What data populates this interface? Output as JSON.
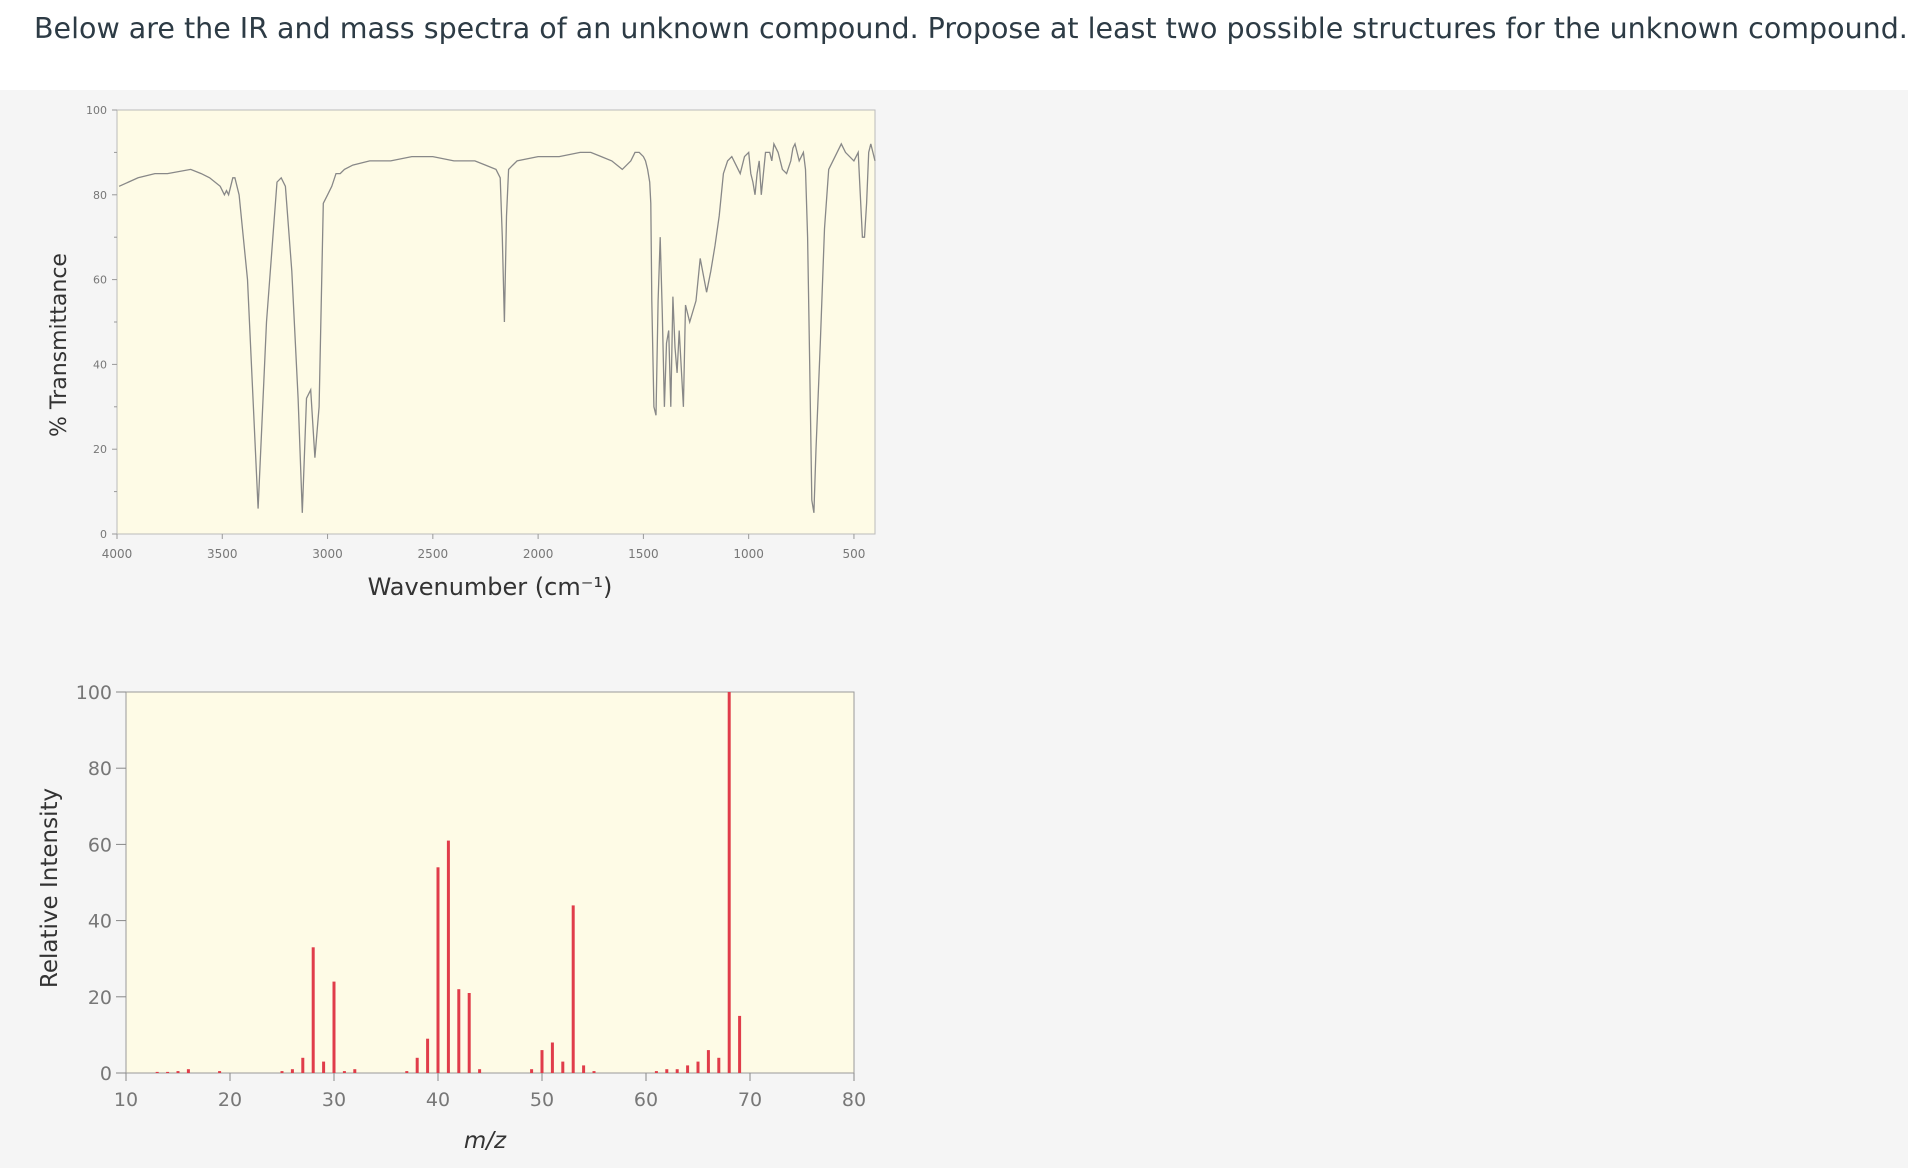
{
  "question": {
    "text": "Below are the IR and mass spectra of an unknown compound. Propose at least two possible structures for the unknown compound."
  },
  "colors": {
    "plot_background": "#fefbe6",
    "ir_line": "#888888",
    "ms_bar": "#e03c4a",
    "panel_background": "#f5f5f5"
  },
  "chart_data": [
    {
      "type": "line",
      "xlabel": "Wavenumber (cm⁻¹)",
      "ylabel": "% Transmittance",
      "xlim": [
        4000,
        400
      ],
      "ylim": [
        0,
        100
      ],
      "x_ticks": [
        4000,
        3500,
        3000,
        2500,
        2000,
        1500,
        1000,
        500
      ],
      "y_ticks": [
        0,
        20,
        40,
        60,
        80,
        100
      ],
      "grid": false,
      "series": [
        {
          "x": [
            3990,
            3900,
            3820,
            3760,
            3650,
            3600,
            3560,
            3510,
            3490,
            3480,
            3470,
            3460,
            3450,
            3440,
            3420,
            3380,
            3330,
            3290,
            3240,
            3220,
            3200,
            3170,
            3140,
            3120,
            3100,
            3080,
            3060,
            3040,
            3020,
            3000,
            2980,
            2960,
            2940,
            2920,
            2880,
            2800,
            2700,
            2600,
            2500,
            2400,
            2300,
            2250,
            2200,
            2180,
            2170,
            2160,
            2150,
            2140,
            2120,
            2100,
            2000,
            1900,
            1800,
            1750,
            1700,
            1650,
            1600,
            1560,
            1540,
            1520,
            1500,
            1490,
            1480,
            1470,
            1465,
            1460,
            1450,
            1440,
            1430,
            1420,
            1410,
            1400,
            1390,
            1380,
            1370,
            1360,
            1350,
            1340,
            1330,
            1310,
            1300,
            1280,
            1250,
            1230,
            1200,
            1180,
            1160,
            1140,
            1120,
            1100,
            1080,
            1060,
            1040,
            1020,
            1000,
            990,
            980,
            970,
            960,
            950,
            940,
            920,
            900,
            890,
            880,
            860,
            840,
            820,
            800,
            790,
            780,
            760,
            740,
            730,
            720,
            710,
            700,
            690,
            680,
            660,
            640,
            620,
            600,
            580,
            560,
            540,
            500,
            480,
            470,
            460,
            450,
            440,
            430,
            420,
            400
          ],
          "y": [
            82,
            84,
            85,
            85,
            86,
            85,
            84,
            82,
            80,
            81,
            80,
            82,
            84,
            84,
            80,
            60,
            6,
            50,
            83,
            84,
            82,
            62,
            32,
            5,
            32,
            34,
            18,
            30,
            78,
            80,
            82,
            85,
            85,
            86,
            87,
            88,
            88,
            89,
            89,
            88,
            88,
            87,
            86,
            84,
            70,
            50,
            75,
            86,
            87,
            88,
            89,
            89,
            90,
            90,
            89,
            88,
            86,
            88,
            90,
            90,
            89,
            88,
            86,
            83,
            78,
            55,
            30,
            28,
            55,
            70,
            52,
            30,
            45,
            48,
            30,
            56,
            44,
            38,
            48,
            30,
            54,
            50,
            55,
            65,
            57,
            62,
            68,
            75,
            85,
            88,
            89,
            87,
            85,
            89,
            90,
            85,
            83,
            80,
            85,
            88,
            80,
            90,
            90,
            88,
            92,
            90,
            86,
            85,
            88,
            91,
            92,
            88,
            90,
            86,
            70,
            40,
            8,
            5,
            20,
            45,
            72,
            86,
            88,
            90,
            92,
            90,
            88,
            90,
            80,
            70,
            70,
            78,
            90,
            92,
            88
          ]
        }
      ]
    },
    {
      "type": "bar",
      "xlabel": "m/z",
      "ylabel": "Relative Intensity",
      "xlim": [
        10,
        80
      ],
      "ylim": [
        0,
        100
      ],
      "x_ticks": [
        10,
        20,
        30,
        40,
        50,
        60,
        70,
        80
      ],
      "y_ticks": [
        0,
        20,
        40,
        60,
        80,
        100
      ],
      "grid": false,
      "x": [
        13,
        14,
        15,
        16,
        19,
        25,
        26,
        27,
        28,
        29,
        30,
        31,
        32,
        37,
        38,
        39,
        40,
        41,
        42,
        43,
        44,
        49,
        50,
        51,
        52,
        53,
        54,
        55,
        61,
        62,
        63,
        64,
        65,
        66,
        67,
        68,
        69
      ],
      "values": [
        0.3,
        0.3,
        0.5,
        1,
        0.5,
        0.5,
        1,
        4,
        33,
        3,
        24,
        0.5,
        1,
        0.5,
        4,
        9,
        54,
        61,
        22,
        21,
        1,
        1,
        6,
        8,
        3,
        44,
        2,
        0.5,
        0.5,
        1,
        1,
        2,
        3,
        6,
        4,
        100,
        15
      ]
    }
  ]
}
